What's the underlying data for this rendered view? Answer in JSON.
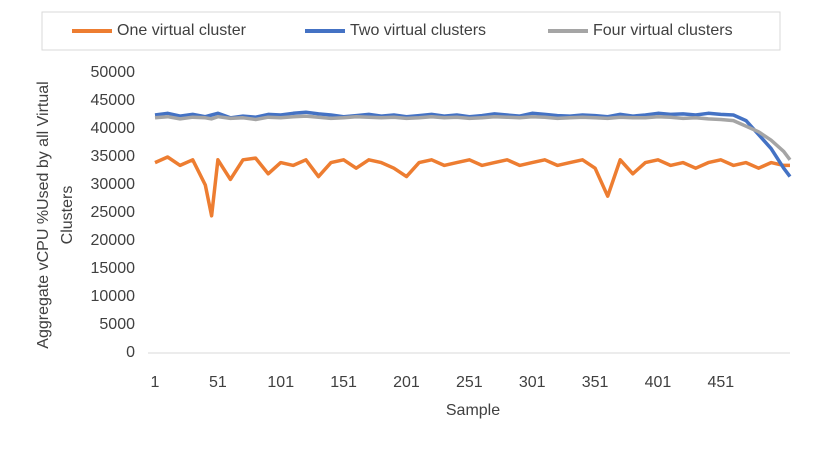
{
  "chart_data": {
    "type": "line",
    "x_label": "Sample",
    "y_label": [
      "Aggregate vCPU %Used by all Virtual",
      "Clusters"
    ],
    "x": [
      1,
      11,
      21,
      31,
      41,
      46,
      51,
      61,
      71,
      81,
      91,
      101,
      111,
      121,
      131,
      141,
      151,
      161,
      171,
      181,
      191,
      201,
      211,
      221,
      231,
      241,
      251,
      261,
      271,
      281,
      291,
      301,
      311,
      321,
      331,
      341,
      351,
      361,
      371,
      381,
      391,
      401,
      411,
      421,
      431,
      441,
      451,
      461,
      471,
      481,
      491,
      501,
      506
    ],
    "series": [
      {
        "name": "One virtual cluster",
        "color": "#ed7d31",
        "values": [
          34000,
          35000,
          33500,
          34500,
          30000,
          24500,
          34500,
          31000,
          34500,
          34800,
          32000,
          34000,
          33500,
          34500,
          31500,
          34000,
          34500,
          33000,
          34500,
          34000,
          33000,
          31500,
          34000,
          34500,
          33500,
          34000,
          34500,
          33500,
          34000,
          34500,
          33500,
          34000,
          34500,
          33500,
          34000,
          34500,
          33000,
          28000,
          34500,
          32000,
          34000,
          34500,
          33500,
          34000,
          33000,
          34000,
          34500,
          33500,
          34000,
          33000,
          34000,
          33500,
          33500
        ]
      },
      {
        "name": "Two virtual clusters",
        "color": "#4472c4",
        "values": [
          42500,
          42800,
          42300,
          42600,
          42200,
          42500,
          42800,
          42000,
          42300,
          42100,
          42600,
          42500,
          42800,
          43000,
          42700,
          42500,
          42200,
          42400,
          42600,
          42300,
          42500,
          42200,
          42400,
          42600,
          42300,
          42500,
          42200,
          42400,
          42700,
          42500,
          42300,
          42800,
          42600,
          42400,
          42300,
          42500,
          42400,
          42200,
          42600,
          42300,
          42500,
          42800,
          42600,
          42700,
          42500,
          42800,
          42600,
          42500,
          41500,
          39000,
          36500,
          33000,
          31500
        ]
      },
      {
        "name": "Four virtual clusters",
        "color": "#a5a5a5",
        "values": [
          42000,
          42200,
          41800,
          42100,
          42000,
          41800,
          42200,
          41900,
          42000,
          41700,
          42100,
          42000,
          42200,
          42300,
          42100,
          41900,
          42000,
          42200,
          42100,
          42000,
          42100,
          41900,
          42000,
          42200,
          42000,
          42100,
          41900,
          42000,
          42200,
          42100,
          42000,
          42200,
          42100,
          41900,
          42000,
          42100,
          42000,
          41900,
          42100,
          42000,
          42000,
          42200,
          42100,
          41900,
          42000,
          41800,
          41700,
          41500,
          40500,
          39500,
          38000,
          36000,
          34500
        ]
      }
    ],
    "xlim": [
      1,
      506
    ],
    "xticks": [
      1,
      51,
      101,
      151,
      201,
      251,
      301,
      351,
      401,
      451
    ],
    "ylim": [
      0,
      50000
    ],
    "yticks": [
      0,
      5000,
      10000,
      15000,
      20000,
      25000,
      30000,
      35000,
      40000,
      45000,
      50000
    ],
    "legend": "top"
  }
}
